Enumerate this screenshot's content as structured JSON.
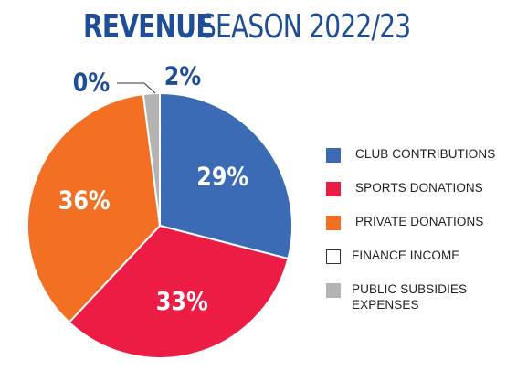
{
  "title": {
    "strong": "REVENUE",
    "rest": "SEASON 2022/23"
  },
  "chart_data": {
    "type": "pie",
    "title": "REVENUE SEASON 2022/23",
    "slices": [
      {
        "label": "CLUB CONTRIBUTIONS",
        "value": 29,
        "display": "29%",
        "color": "#3b6bb5"
      },
      {
        "label": "SPORTS DONATIONS",
        "value": 33,
        "display": "33%",
        "color": "#ec1c45"
      },
      {
        "label": "PRIVATE DONATIONS",
        "value": 36,
        "display": "36%",
        "color": "#f26f24"
      },
      {
        "label": "FINANCE INCOME",
        "value": 0,
        "display": "0%",
        "color": "#ffffff"
      },
      {
        "label": "PUBLIC SUBSIDIES EXPENSES",
        "value": 2,
        "display": "2%",
        "color": "#b3b3b3"
      }
    ],
    "legend_position": "right",
    "start": "top (12 o'clock), clockwise"
  },
  "legend": [
    {
      "label": "CLUB CONTRIBUTIONS",
      "color": "#3b6bb5",
      "border": "none"
    },
    {
      "label": "SPORTS DONATIONS",
      "color": "#ec1c45",
      "border": "none"
    },
    {
      "label": "PRIVATE DONATIONS",
      "color": "#f26f24",
      "border": "none"
    },
    {
      "label": "FINANCE INCOME",
      "color": "#ffffff",
      "border": "#333333"
    },
    {
      "label": "PUBLIC SUBSIDIES EXPENSES",
      "color": "#b3b3b3",
      "border": "none"
    }
  ],
  "colors": {
    "title": "#1f4e96",
    "pct_inside": "#ffffff",
    "pct_outside": "#1f4e96",
    "leader_line": "#333333"
  }
}
